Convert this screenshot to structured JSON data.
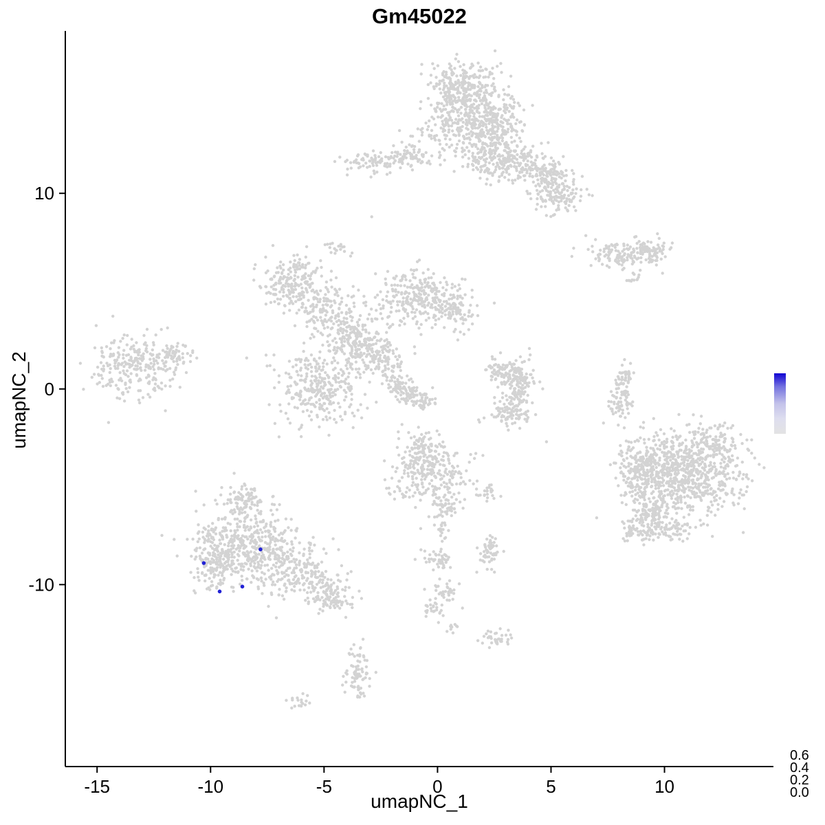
{
  "title": "Gm45022",
  "chart_data": {
    "type": "scatter",
    "title": "Gm45022",
    "xlabel": "umapNC_1",
    "ylabel": "umapNC_2",
    "x_ticks": [
      -15,
      -10,
      -5,
      0,
      5,
      10
    ],
    "y_ticks": [
      -10,
      0,
      10
    ],
    "xlim": [
      -16.4,
      14.8
    ],
    "ylim": [
      -19.3,
      18.3
    ],
    "grid": false,
    "point_color": "#D3D3D3",
    "highlight_color": "#2222D5",
    "axis_color": "#000000",
    "background": "#FFFFFF",
    "seed": 42,
    "legend": {
      "position": "right",
      "labels": [
        "0.6",
        "0.4",
        "0.2",
        "0.0"
      ],
      "values": [
        0.6,
        0.4,
        0.2,
        0.0
      ],
      "gradient_stops": [
        {
          "offset": 0.0,
          "color": "#1002D3"
        },
        {
          "offset": 0.22,
          "color": "#7472DF"
        },
        {
          "offset": 0.5,
          "color": "#C3C2EA"
        },
        {
          "offset": 0.75,
          "color": "#DEDEEF"
        },
        {
          "offset": 1.0,
          "color": "#E3E3E3"
        }
      ]
    },
    "clusters": [
      {
        "x": 1.4,
        "y": 14.4,
        "sx": 1.0,
        "sy": 1.0,
        "n": 420
      },
      {
        "x": 0.8,
        "y": 15.4,
        "sx": 0.6,
        "sy": 0.6,
        "n": 150
      },
      {
        "x": 2.5,
        "y": 13.2,
        "sx": 0.7,
        "sy": 0.7,
        "n": 150
      },
      {
        "x": 2.3,
        "y": 11.9,
        "sx": 0.5,
        "sy": 0.6,
        "n": 120
      },
      {
        "x": 3.7,
        "y": 11.5,
        "sx": 0.7,
        "sy": 0.5,
        "n": 160
      },
      {
        "x": 4.9,
        "y": 10.8,
        "sx": 0.5,
        "sy": 0.45,
        "n": 110
      },
      {
        "x": 5.3,
        "y": 9.8,
        "sx": 0.55,
        "sy": 0.4,
        "n": 110
      },
      {
        "x": -2.6,
        "y": 11.6,
        "sx": 0.7,
        "sy": 0.3,
        "n": 90
      },
      {
        "x": -1.2,
        "y": 11.9,
        "sx": 0.45,
        "sy": 0.3,
        "n": 60
      },
      {
        "x": 0.3,
        "y": 12.6,
        "sx": 0.9,
        "sy": 0.6,
        "n": 60
      },
      {
        "x": 8.2,
        "y": 6.9,
        "sx": 0.8,
        "sy": 0.35,
        "n": 130
      },
      {
        "x": 9.4,
        "y": 7.1,
        "sx": 0.4,
        "sy": 0.3,
        "n": 60
      },
      {
        "x": 8.6,
        "y": 5.7,
        "sx": 0.2,
        "sy": 0.15,
        "n": 12
      },
      {
        "x": -6.3,
        "y": 5.4,
        "sx": 0.7,
        "sy": 0.65,
        "n": 220
      },
      {
        "x": -4.9,
        "y": 4.0,
        "sx": 0.6,
        "sy": 0.55,
        "n": 110
      },
      {
        "x": -0.9,
        "y": 4.7,
        "sx": 0.85,
        "sy": 0.7,
        "n": 260
      },
      {
        "x": 0.8,
        "y": 4.1,
        "sx": 0.5,
        "sy": 0.5,
        "n": 90
      },
      {
        "x": -4.0,
        "y": 2.7,
        "sx": 0.5,
        "sy": 0.45,
        "n": 90
      },
      {
        "x": -3.2,
        "y": 2.1,
        "sx": 0.5,
        "sy": 0.45,
        "n": 90
      },
      {
        "x": -2.4,
        "y": 1.5,
        "sx": 0.5,
        "sy": 0.4,
        "n": 80
      },
      {
        "x": -5.2,
        "y": 0.1,
        "sx": 0.95,
        "sy": 0.95,
        "n": 330
      },
      {
        "x": -1.9,
        "y": 0.3,
        "sx": 0.3,
        "sy": 0.25,
        "n": 50
      },
      {
        "x": -1.3,
        "y": -0.2,
        "sx": 0.3,
        "sy": 0.25,
        "n": 50
      },
      {
        "x": -0.7,
        "y": -0.6,
        "sx": 0.3,
        "sy": 0.25,
        "n": 45
      },
      {
        "x": -3.3,
        "y": 3.4,
        "sx": 1.1,
        "sy": 0.9,
        "n": 70
      },
      {
        "x": -4.4,
        "y": 7.2,
        "sx": 0.25,
        "sy": 0.2,
        "n": 20
      },
      {
        "x": -13.3,
        "y": 1.1,
        "sx": 1.0,
        "sy": 0.85,
        "n": 260
      },
      {
        "x": -11.7,
        "y": 1.8,
        "sx": 0.45,
        "sy": 0.35,
        "n": 50
      },
      {
        "x": 3.4,
        "y": 0.9,
        "sx": 0.45,
        "sy": 0.35,
        "n": 80
      },
      {
        "x": 2.6,
        "y": 1.0,
        "sx": 0.3,
        "sy": 0.3,
        "n": 45
      },
      {
        "x": 3.6,
        "y": -0.1,
        "sx": 0.3,
        "sy": 0.5,
        "n": 90
      },
      {
        "x": 3.2,
        "y": -1.2,
        "sx": 0.45,
        "sy": 0.35,
        "n": 80
      },
      {
        "x": 8.1,
        "y": -0.5,
        "sx": 0.25,
        "sy": 0.75,
        "n": 90
      },
      {
        "x": 8.3,
        "y": 0.6,
        "sx": 0.2,
        "sy": 0.2,
        "n": 20
      },
      {
        "x": 10.9,
        "y": -4.3,
        "sx": 1.25,
        "sy": 1.05,
        "n": 750
      },
      {
        "x": 9.0,
        "y": -4.1,
        "sx": 0.55,
        "sy": 0.85,
        "n": 180
      },
      {
        "x": 9.4,
        "y": -6.3,
        "sx": 0.5,
        "sy": 0.55,
        "n": 130
      },
      {
        "x": 8.8,
        "y": -7.2,
        "sx": 0.35,
        "sy": 0.35,
        "n": 50
      },
      {
        "x": 12.3,
        "y": -2.7,
        "sx": 0.55,
        "sy": 0.45,
        "n": 90
      },
      {
        "x": 10.3,
        "y": -7.2,
        "sx": 0.8,
        "sy": 0.35,
        "n": 60
      },
      {
        "x": -0.3,
        "y": -4.4,
        "sx": 0.85,
        "sy": 0.8,
        "n": 260
      },
      {
        "x": -0.6,
        "y": -2.9,
        "sx": 0.4,
        "sy": 0.4,
        "n": 70
      },
      {
        "x": 0.3,
        "y": -6.1,
        "sx": 0.3,
        "sy": 0.4,
        "n": 50
      },
      {
        "x": 0.2,
        "y": -7.2,
        "sx": 0.15,
        "sy": 0.3,
        "n": 15
      },
      {
        "x": -8.2,
        "y": -8.1,
        "sx": 1.15,
        "sy": 0.95,
        "n": 520
      },
      {
        "x": -8.7,
        "y": -5.7,
        "sx": 0.45,
        "sy": 0.45,
        "n": 90
      },
      {
        "x": -9.9,
        "y": -8.9,
        "sx": 0.45,
        "sy": 0.7,
        "n": 130
      },
      {
        "x": -6.0,
        "y": -9.6,
        "sx": 0.8,
        "sy": 0.5,
        "n": 140
      },
      {
        "x": -4.7,
        "y": -10.6,
        "sx": 0.5,
        "sy": 0.4,
        "n": 110
      },
      {
        "x": 2.3,
        "y": -5.3,
        "sx": 0.25,
        "sy": 0.2,
        "n": 22
      },
      {
        "x": 2.3,
        "y": -8.3,
        "sx": 0.3,
        "sy": 0.4,
        "n": 55
      },
      {
        "x": 0.0,
        "y": -8.8,
        "sx": 0.35,
        "sy": 0.3,
        "n": 45
      },
      {
        "x": 0.4,
        "y": -10.3,
        "sx": 0.3,
        "sy": 0.25,
        "n": 35
      },
      {
        "x": -0.2,
        "y": -11.3,
        "sx": 0.25,
        "sy": 0.25,
        "n": 25
      },
      {
        "x": 2.6,
        "y": -12.7,
        "sx": 0.35,
        "sy": 0.25,
        "n": 35
      },
      {
        "x": 0.6,
        "y": -12.2,
        "sx": 0.2,
        "sy": 0.15,
        "n": 10
      },
      {
        "x": -3.5,
        "y": -14.5,
        "sx": 0.28,
        "sy": 0.75,
        "n": 80
      },
      {
        "x": -6.1,
        "y": -15.9,
        "sx": 0.25,
        "sy": 0.2,
        "n": 18
      }
    ],
    "single_points": [
      {
        "x": -2.9,
        "y": 8.8
      },
      {
        "x": 4.8,
        "y": -2.7
      },
      {
        "x": 2.0,
        "y": -3.4
      },
      {
        "x": -7.1,
        "y": -11.7
      },
      {
        "x": 1.1,
        "y": -11.2
      }
    ],
    "highlighted_points": [
      {
        "x": -10.3,
        "y": -8.9,
        "value": 0.6
      },
      {
        "x": -9.6,
        "y": -10.35,
        "value": 0.6
      },
      {
        "x": -8.6,
        "y": -10.1,
        "value": 0.6
      },
      {
        "x": -7.8,
        "y": -8.2,
        "value": 0.6
      }
    ]
  }
}
